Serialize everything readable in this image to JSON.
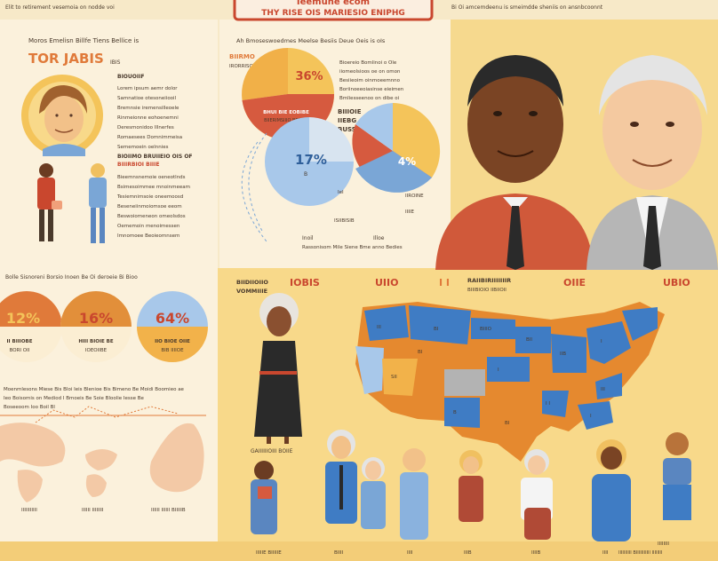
{
  "header": {
    "top_left_caption": "Elit to retirement vesemoia on nodde voi",
    "top_right_caption": "Bi Oi amcemdeenu is smeimdde sheniis on ansnbcoonnt",
    "title_line1": "Ieemuhe ecom",
    "title_line2": "THY RISE OIS MARIESIO ENIPHG"
  },
  "left_panel": {
    "caption": "Moros Emelisn Billfe Tiens Bellice is",
    "heading": "TOR JABIS",
    "subheading": "IBIS",
    "list_heading": "BIOUOIIF",
    "body_lines": [
      "Lorem ipsum aemr dolor",
      "Samnatioe otesoneiiooil",
      "Bremnsie iremensilleoele",
      "Rinmeionne eohoenemni",
      "Deresmonidoo Illnerfes",
      "Romaesees Domnimmeisa",
      "Sememoein oelnnies"
    ],
    "mid_heading": "BIOIIMO BRUIIEIO OIS OF",
    "mid_heading2": "BIIIRBIOI BIIIE",
    "mid_lines": [
      "Bieemnsnemoie oeneotlnds",
      "Bsimesoimmee mnoinmeeam",
      "Tesiemnimsoie oneemoosd",
      "Beseneiinmoiomsoe eeom",
      "Beswoiomeneon omeolsdos",
      "Oememoin menoimessen",
      "Imnomoee Beoieomnsem"
    ]
  },
  "center_panel": {
    "caption": "Ah Bmoseswoedmes Meelse Besiis Deue Oeis is oIs",
    "pie_label_small": "BIIRMO",
    "pie_label_small2": "IRORRISOI NON",
    "pie1_value": "36%",
    "pie1_label": "BHUI BIE EOBIBE",
    "pie1_label2": "BIIERIMSIIIO BEIRBII",
    "right_lines": [
      "Bioereio Bomlinoi o Ole",
      "iiomeolsioos oe on omon",
      "Besiieoim oinmoeemnno",
      "Boriinoeeoiasinse eieimen",
      "Bmliesseenoo on dibe oi"
    ],
    "right_heading": "BIIIOIE",
    "right_heading2": "IIEBG",
    "right_heading3": "BUSS",
    "pie2_value": "17%",
    "pie2_label": "B",
    "pie3_value": "4%",
    "footnotes": [
      "IeI",
      "IIROINE",
      "ISIIBISIB",
      "IIIIE"
    ],
    "bottom_labels": [
      "Inoil",
      "Illoe"
    ],
    "bottom_caption": "Rassonisom Mile Siene Bme anno Bedies"
  },
  "stats_row": {
    "caption": "Bolle Sisnoreni Borsio Inoen Be Oi deroeie Bi Bioo",
    "circles": [
      {
        "value": "12%",
        "label": "II BIIIOBE",
        "label2": "BORI OII",
        "color": "#e07a3a"
      },
      {
        "value": "16%",
        "label": "HIII BIOIE BE",
        "label2": "IOEOIIBE",
        "color": "#e28f3a"
      },
      {
        "value": "64%",
        "label": "IIO BIOE OIIE",
        "label2": "BIB IIIIOE",
        "color": "#f2b24a"
      }
    ],
    "note_line1": "Moenmlesons Miese Bis Bloi Ieis Blenioe Bis Bimeno Be Moidi Boomieo ae",
    "note_line2": "Ieo Boisomis on Mediod I Bmoeis Be Soie Bloolie Iesse Be",
    "note_line3": "Boseeoom Ioo Boil Bl"
  },
  "map_section": {
    "left_labels": [
      "BIIDIIOIIO",
      "VOMMIIIE"
    ],
    "labels": [
      "IOBIS",
      "UIIO",
      "I I",
      "RAIIBIRIIIIIIIR",
      "OIIE",
      "UBIO"
    ],
    "label_sub": "BIIIBIOIO IIBIIOII",
    "person_caption": "GAIIIIIIOIII BOIIE",
    "states": [
      "III",
      "BI",
      "BIIIO",
      "SII",
      "BI",
      "I",
      "B",
      "BII",
      "IIB",
      "I",
      "BI",
      "I I",
      "III",
      "I"
    ]
  },
  "world_map": {
    "labels": [
      "IIIIIIIIIII",
      "IIIIII IIIIIIII",
      "IIIIII IIIIII BIIIIIB"
    ]
  },
  "bottom_people": {
    "labels": [
      "IIIIIE BIIIIIE",
      "BIIII",
      "IIII",
      "IIIB",
      "IIIIB",
      "IIII",
      "IIIIIIII",
      "IIIIIIIIII BIIIIIIIIIII IIIIIIII"
    ]
  },
  "colors": {
    "background": "#f7e9c8",
    "orange": "#e5892f",
    "blue": "#3f7cc4",
    "red": "#d65a3f",
    "yellow": "#f4c45a",
    "grey": "#b3b3b3"
  }
}
